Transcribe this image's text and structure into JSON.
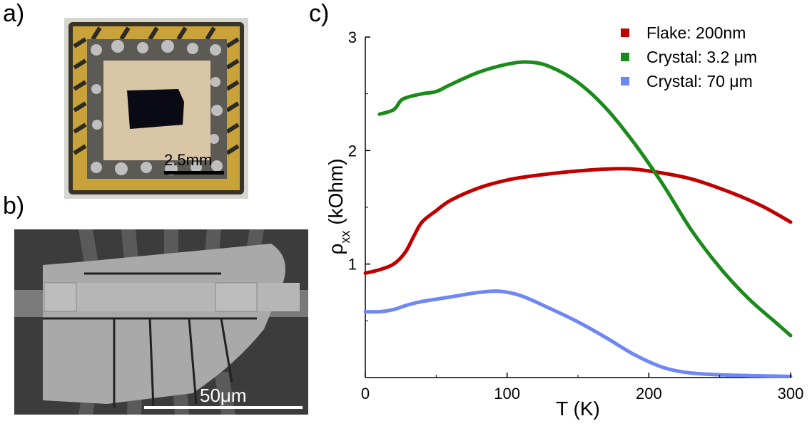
{
  "panels": {
    "a": "a)",
    "b": "b)",
    "c": "c)"
  },
  "scalebars": {
    "a": "2.5mm",
    "b": "50μm"
  },
  "colors": {
    "flake": "#c00000",
    "crystal_3_2": "#1a8a1a",
    "crystal_70": "#6f86f5"
  },
  "chart_data": {
    "type": "line",
    "title": "",
    "xlabel": "T (K)",
    "ylabel_main": "ρ",
    "ylabel_sub": "xx",
    "ylabel_unit": " (kOhm)",
    "xlim": [
      0,
      300
    ],
    "ylim": [
      0,
      3
    ],
    "xticks": [
      0,
      100,
      200,
      300
    ],
    "yticks": [
      1,
      2,
      3
    ],
    "grid": false,
    "legend_position": "top-right",
    "series": [
      {
        "name": "Flake: 200nm",
        "color": "#c00000",
        "x": [
          0,
          10,
          20,
          28,
          34,
          40,
          50,
          60,
          80,
          100,
          120,
          150,
          180,
          200,
          230,
          260,
          280,
          300
        ],
        "y": [
          0.92,
          0.95,
          1.0,
          1.1,
          1.24,
          1.37,
          1.47,
          1.56,
          1.67,
          1.74,
          1.78,
          1.82,
          1.84,
          1.82,
          1.75,
          1.62,
          1.51,
          1.37
        ]
      },
      {
        "name": "Crystal: 3.2 μm",
        "color": "#1a8a1a",
        "x": [
          10,
          20,
          25,
          30,
          40,
          50,
          60,
          80,
          100,
          115,
          130,
          150,
          170,
          190,
          210,
          230,
          250,
          270,
          290,
          300
        ],
        "y": [
          2.32,
          2.36,
          2.44,
          2.47,
          2.5,
          2.52,
          2.58,
          2.69,
          2.76,
          2.78,
          2.74,
          2.6,
          2.37,
          2.06,
          1.7,
          1.3,
          0.97,
          0.7,
          0.48,
          0.37
        ]
      },
      {
        "name": "Crystal: 70 μm",
        "color": "#6f86f5",
        "x": [
          0,
          10,
          20,
          30,
          40,
          60,
          80,
          95,
          110,
          130,
          150,
          170,
          190,
          210,
          230,
          260,
          300
        ],
        "y": [
          0.58,
          0.58,
          0.6,
          0.64,
          0.67,
          0.71,
          0.75,
          0.76,
          0.72,
          0.61,
          0.49,
          0.35,
          0.2,
          0.09,
          0.04,
          0.02,
          0.01
        ]
      }
    ]
  }
}
